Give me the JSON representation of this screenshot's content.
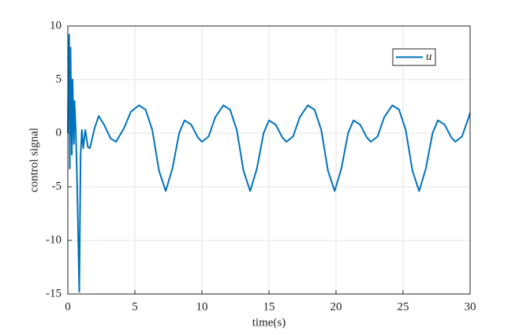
{
  "chart_data": {
    "type": "line",
    "xlabel": "time(s)",
    "ylabel": "control signal",
    "x": [
      0,
      0.05,
      0.1,
      0.15,
      0.2,
      0.3,
      0.35,
      0.45,
      0.5,
      0.6,
      0.7,
      0.85,
      0.95,
      1.05,
      1.15,
      1.3,
      1.5,
      1.65,
      2.0,
      2.3,
      2.7,
      3.2,
      3.6,
      4.2,
      4.7,
      5.3,
      5.8,
      6.3,
      6.8,
      7.3,
      7.8,
      8.3,
      8.7,
      9.2,
      9.7,
      10.0,
      10.5,
      11.0,
      11.6,
      12.1,
      12.6,
      13.1,
      13.6,
      14.1,
      14.6,
      15.0,
      15.5,
      16.0,
      16.3,
      16.8,
      17.3,
      17.9,
      18.4,
      18.9,
      19.4,
      19.9,
      20.4,
      20.9,
      21.3,
      21.8,
      22.3,
      22.6,
      23.1,
      23.6,
      24.2,
      24.7,
      25.2,
      25.7,
      26.2,
      26.7,
      27.2,
      27.6,
      28.1,
      28.6,
      28.9,
      29.4,
      29.9,
      30
    ],
    "series": [
      {
        "name": "u",
        "color": "#0072bd",
        "values": [
          0,
          6,
          9.2,
          -3.3,
          8,
          -2,
          5,
          -1,
          3,
          0,
          -5,
          -14.8,
          -2,
          0.3,
          -1.4,
          0.3,
          -1.3,
          -1.4,
          0.5,
          1.6,
          0.8,
          -0.5,
          -0.8,
          0.5,
          2.0,
          2.6,
          2.2,
          0.3,
          -3.5,
          -5.4,
          -3.3,
          0.0,
          1.2,
          0.8,
          -0.4,
          -0.8,
          -0.3,
          1.5,
          2.6,
          2.2,
          0.3,
          -3.5,
          -5.4,
          -3.3,
          0.0,
          1.2,
          0.8,
          -0.4,
          -0.8,
          -0.3,
          1.5,
          2.6,
          2.2,
          0.3,
          -3.5,
          -5.4,
          -3.3,
          0.0,
          1.2,
          0.8,
          -0.4,
          -0.8,
          -0.3,
          1.5,
          2.6,
          2.2,
          0.3,
          -3.5,
          -5.4,
          -3.3,
          0.0,
          1.2,
          0.8,
          -0.4,
          -0.8,
          -0.3,
          1.5,
          1.9
        ]
      }
    ],
    "xlim": [
      0,
      30
    ],
    "xticks": [
      0,
      5,
      10,
      15,
      20,
      25,
      30
    ],
    "ylim": [
      -15,
      10
    ],
    "yticks": [
      -15,
      -10,
      -5,
      0,
      5,
      10
    ],
    "grid": true,
    "legend": "northeast"
  }
}
